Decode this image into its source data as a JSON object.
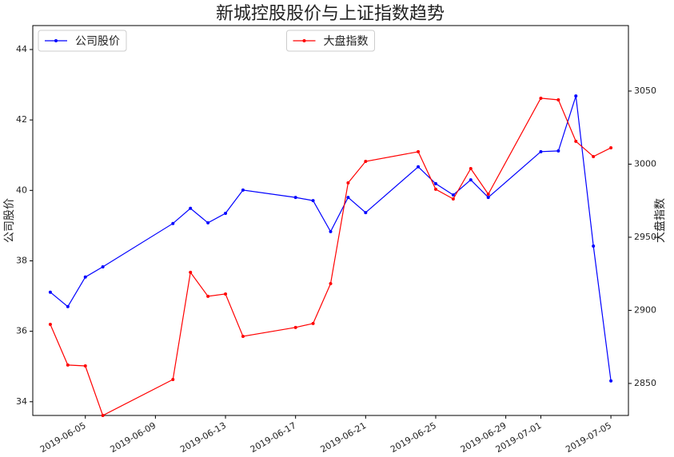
{
  "chart_data": {
    "type": "line",
    "title": "新城控股股价与上证指数趋势",
    "ylabel": "公司股价",
    "y2label": "大盘指数",
    "x": [
      "2019-06-03",
      "2019-06-04",
      "2019-06-05",
      "2019-06-06",
      "2019-06-10",
      "2019-06-11",
      "2019-06-12",
      "2019-06-13",
      "2019-06-14",
      "2019-06-17",
      "2019-06-18",
      "2019-06-19",
      "2019-06-20",
      "2019-06-21",
      "2019-06-24",
      "2019-06-25",
      "2019-06-26",
      "2019-06-27",
      "2019-06-28",
      "2019-07-01",
      "2019-07-02",
      "2019-07-03",
      "2019-07-04",
      "2019-07-05"
    ],
    "series": [
      {
        "name": "公司股价",
        "color": "#0000ff",
        "axis": "y",
        "legend": "upper left",
        "values": [
          37.11,
          36.7,
          37.54,
          37.83,
          39.06,
          39.49,
          39.08,
          39.35,
          40.01,
          39.8,
          39.71,
          38.83,
          39.8,
          39.37,
          40.67,
          40.19,
          39.87,
          40.3,
          39.8,
          41.1,
          41.12,
          42.68,
          38.42,
          34.59
        ]
      },
      {
        "name": "大盘指数",
        "color": "#ff0000",
        "axis": "y2",
        "legend": "upper center",
        "values": [
          2890.4,
          2862.6,
          2862.0,
          2828.1,
          2852.7,
          2926.0,
          2909.6,
          2911.2,
          2882.2,
          2888.3,
          2891.0,
          2918.3,
          2987.2,
          3001.9,
          3008.5,
          2982.8,
          2976.2,
          2997.0,
          2979.5,
          3045.1,
          3044.0,
          3015.6,
          3005.2,
          3011.2
        ]
      }
    ],
    "xlim": [
      "2019-06-02",
      "2019-07-06"
    ],
    "xticks": [
      "2019-06-05",
      "2019-06-09",
      "2019-06-13",
      "2019-06-17",
      "2019-06-21",
      "2019-06-25",
      "2019-06-29",
      "2019-07-01",
      "2019-07-05"
    ],
    "ylim": [
      33.61,
      44.68
    ],
    "yticks": [
      34,
      36,
      38,
      40,
      42,
      44
    ],
    "y2lim": [
      2828.1,
      3094.8
    ],
    "y2ticks": [
      2850,
      2900,
      2950,
      3000,
      3050
    ]
  }
}
